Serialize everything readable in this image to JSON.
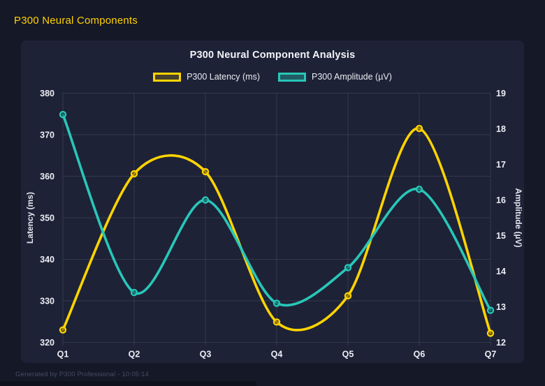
{
  "page": {
    "title": "P300 Neural Components",
    "footer": "Generated by P300 Professional - 10:05:14",
    "background": "#151827",
    "panel_background": "#1e2237",
    "accent": "#ffd104"
  },
  "chart_data": {
    "type": "line",
    "title": "P300 Neural Component Analysis",
    "categories": [
      "Q1",
      "Q2",
      "Q3",
      "Q4",
      "Q5",
      "Q6",
      "Q7"
    ],
    "series": [
      {
        "name": "P300 Latency (ms)",
        "axis": "left",
        "color": "#ffd400",
        "legend_fill": "rgba(255,212,0,0.18)",
        "values": [
          323,
          360.6,
          361.1,
          324.9,
          331.2,
          371.5,
          322.2
        ]
      },
      {
        "name": "P300 Amplitude (µV)",
        "axis": "right",
        "color": "#28c7b8",
        "legend_fill": "rgba(40,199,184,0.35)",
        "values": [
          18.4,
          13.4,
          16.0,
          13.1,
          14.1,
          16.3,
          12.9
        ]
      }
    ],
    "left_axis": {
      "label": "Latency (ms)",
      "min": 320,
      "max": 380,
      "ticks": [
        380,
        370,
        360,
        350,
        340,
        330,
        320
      ]
    },
    "right_axis": {
      "label": "Amplitude (µV)",
      "min": 12,
      "max": 19,
      "ticks": [
        19,
        18,
        17,
        16,
        15,
        14,
        13,
        12
      ]
    },
    "legend_position": "top",
    "grid": true,
    "grid_color": "rgba(255,255,255,0.10)",
    "tick_color": "#eceef4",
    "axis_title_color": "#e4e7ee",
    "curve_tension": 0.15
  }
}
